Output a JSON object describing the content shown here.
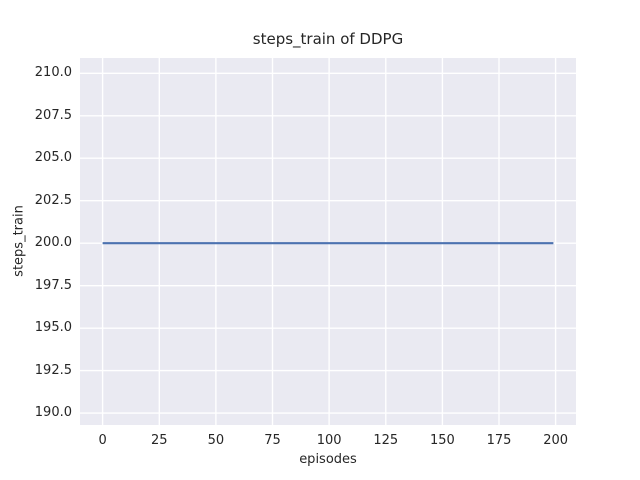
{
  "colors": {
    "figure_bg": "#ffffff",
    "plot_bg": "#eaeaf2",
    "grid": "#ffffff",
    "line": "#4c72b0",
    "text": "#262626"
  },
  "chart_data": {
    "type": "line",
    "title": "steps_train of DDPG",
    "xlabel": "episodes",
    "ylabel": "steps_train",
    "xlim": [
      -10,
      209
    ],
    "ylim": [
      189.3,
      210.9
    ],
    "x_tick_values": [
      0,
      25,
      50,
      75,
      100,
      125,
      150,
      175,
      200
    ],
    "x_tick_labels": [
      "0",
      "25",
      "50",
      "75",
      "100",
      "125",
      "150",
      "175",
      "200"
    ],
    "y_tick_values": [
      190.0,
      192.5,
      195.0,
      197.5,
      200.0,
      202.5,
      205.0,
      207.5,
      210.0
    ],
    "y_tick_labels": [
      "190.0",
      "192.5",
      "195.0",
      "197.5",
      "200.0",
      "202.5",
      "205.0",
      "207.5",
      "210.0"
    ],
    "grid": true,
    "legend_position": "none",
    "series": [
      {
        "name": "steps_train",
        "color": "#4c72b0",
        "constant_value": 200,
        "x": [
          0,
          199
        ],
        "y": [
          200,
          200
        ]
      }
    ]
  }
}
